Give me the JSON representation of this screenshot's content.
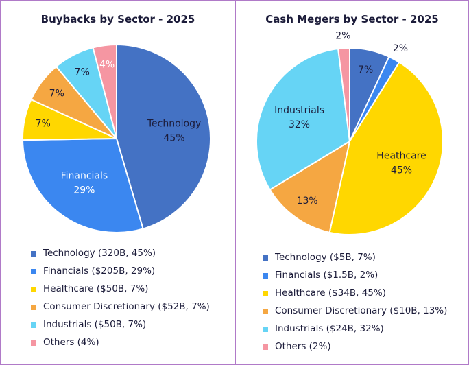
{
  "colors": {
    "Technology": "#4472c4",
    "Financials": "#3b87f0",
    "Healthcare": "#ffd700",
    "Consumer Discretionary": "#f5a742",
    "Industrials": "#66d4f5",
    "Others": "#f596a2"
  },
  "chart_data": [
    {
      "type": "pie",
      "title": "Buybacks by Sector - 2025",
      "categories": [
        "Technology",
        "Financials",
        "Healthcare",
        "Consumer Discretionary",
        "Industrials",
        "Others"
      ],
      "values": [
        45,
        29,
        7,
        7,
        7,
        4
      ],
      "slice_labels": [
        "Technology\n45%",
        "Financials\n29%",
        "7%",
        "7%",
        "7%",
        "4%"
      ],
      "legend": [
        "Technology  (320B, 45%)",
        "Financials ($205B, 29%)",
        "Healthcare ($50B, 7%)",
        "Consumer Discretionary ($52B, 7%)",
        "Industrials ($50B, 7%)",
        "Others (4%)"
      ]
    },
    {
      "type": "pie",
      "title": "Cash Megers by Sector - 2025",
      "categories": [
        "Technology",
        "Financials",
        "Healthcare",
        "Consumer Discretionary",
        "Industrials",
        "Others"
      ],
      "values": [
        7,
        2,
        45,
        13,
        32,
        2
      ],
      "slice_labels": [
        "7%",
        "2%",
        "Heathcare\n45%",
        "13%",
        "Industrials\n32%",
        "2%"
      ],
      "legend": [
        "Technology  ($5B, 7%)",
        "Financials ($1.5B, 2%)",
        "Healthcare ($34B, 45%)",
        "Consumer Discretionary ($10B, 13%)",
        "Industrials ($24B, 32%)",
        "Others (2%)"
      ]
    }
  ]
}
